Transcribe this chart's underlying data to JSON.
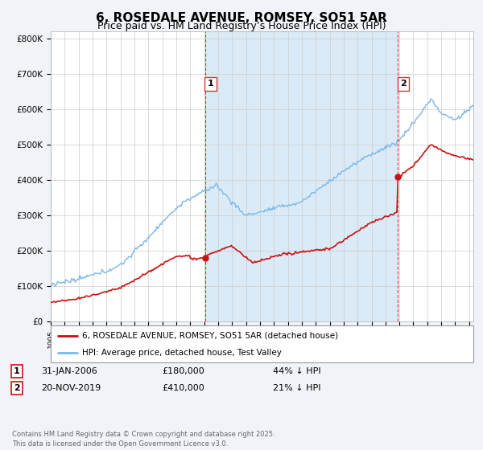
{
  "title": "6, ROSEDALE AVENUE, ROMSEY, SO51 5AR",
  "subtitle": "Price paid vs. HM Land Registry’s House Price Index (HPI)",
  "title_fontsize": 11,
  "subtitle_fontsize": 9,
  "hpi_color": "#7ab8e8",
  "hpi_fill_color": "#daeaf7",
  "price_color": "#cc1111",
  "vline_color": "#dd3333",
  "ylim": [
    0,
    820000
  ],
  "yticks": [
    0,
    100000,
    200000,
    300000,
    400000,
    500000,
    600000,
    700000,
    800000
  ],
  "ytick_labels": [
    "£0",
    "£100K",
    "£200K",
    "£300K",
    "£400K",
    "£500K",
    "£600K",
    "£700K",
    "£800K"
  ],
  "sale1_x": 2006.08,
  "sale1_y": 180000,
  "sale1_label": "1",
  "sale2_x": 2019.9,
  "sale2_y": 410000,
  "sale2_label": "2",
  "legend_line1": "6, ROSEDALE AVENUE, ROMSEY, SO51 5AR (detached house)",
  "legend_line2": "HPI: Average price, detached house, Test Valley",
  "footnote": "Contains HM Land Registry data © Crown copyright and database right 2025.\nThis data is licensed under the Open Government Licence v3.0.",
  "xlim_start": 1995.0,
  "xlim_end": 2025.3,
  "plot_bg_color": "#ffffff",
  "fig_bg_color": "#f0f4f8"
}
